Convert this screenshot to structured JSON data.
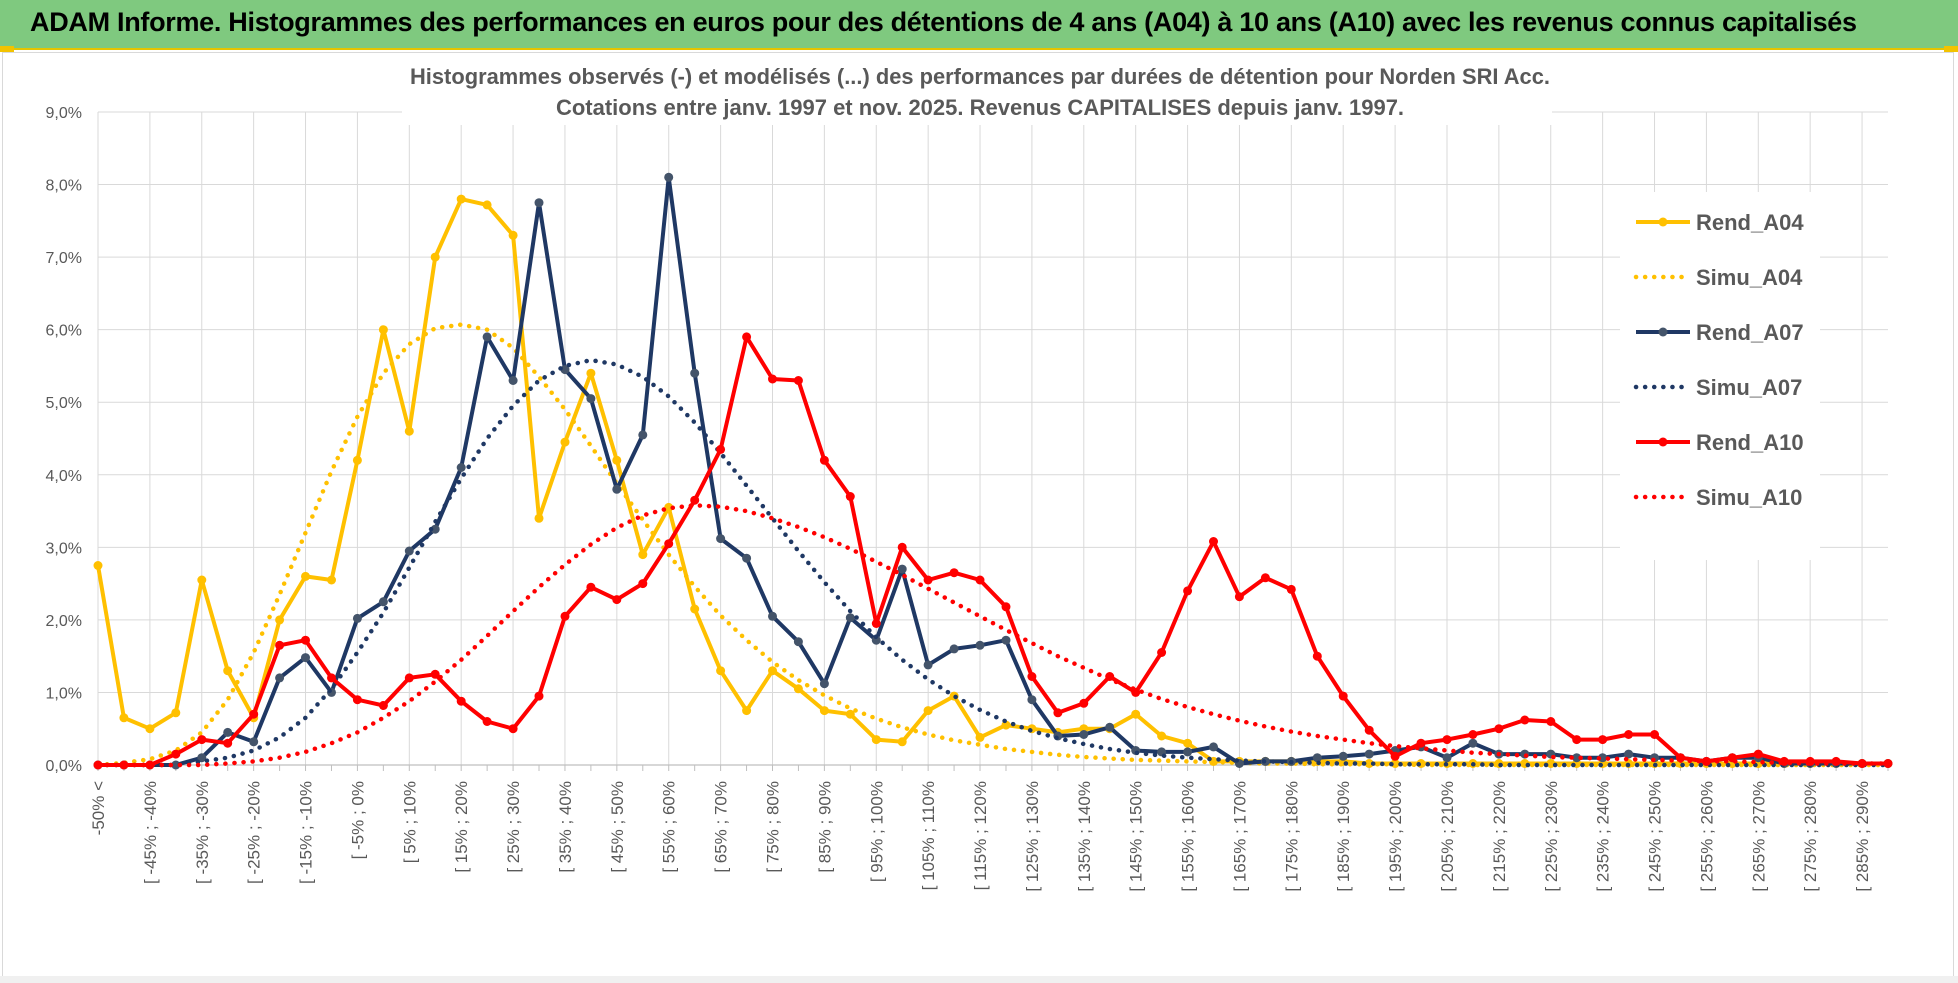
{
  "banner": {
    "title": "ADAM Informe. Histogrammes des performances en euros pour des détentions de 4 ans (A04) à 10 ans (A10) avec les revenus connus capitalisés",
    "bg_color": "#7fc97f",
    "accent_color": "#f3c300"
  },
  "chart_data": {
    "type": "line",
    "title": "Histogrammes observés (-) et modélisés (...) des performances par durées de détention pour Norden SRI Acc.",
    "subtitle": "Cotations entre janv. 1997 et nov. 2025. Revenus CAPITALISES depuis janv. 1997.",
    "xlabel": "",
    "ylabel": "",
    "ylim": [
      0,
      9
    ],
    "y_unit": "%",
    "y_ticks": [
      "0,0%",
      "1,0%",
      "2,0%",
      "3,0%",
      "4,0%",
      "5,0%",
      "6,0%",
      "7,0%",
      "8,0%",
      "9,0%"
    ],
    "grid": true,
    "legend_position": "right",
    "x_tick_labels": [
      "-50% <",
      "[ -45% ; -40%",
      "[ -35% ; -30%",
      "[ -25% ; -20%",
      "[ -15% ; -10%",
      "[ -5% ; 0%",
      "[ 5% ; 10%",
      "[ 15% ; 20%",
      "[ 25% ; 30%",
      "[ 35% ; 40%",
      "[ 45% ; 50%",
      "[ 55% ; 60%",
      "[ 65% ; 70%",
      "[ 75% ; 80%",
      "[ 85% ; 90%",
      "[ 95% ; 100%",
      "[ 105% ; 110%",
      "[ 115% ; 120%",
      "[ 125% ; 130%",
      "[ 135% ; 140%",
      "[ 145% ; 150%",
      "[ 155% ; 160%",
      "[ 165% ; 170%",
      "[ 175% ; 180%",
      "[ 185% ; 190%",
      "[ 195% ; 200%",
      "[ 205% ; 210%",
      "[ 215% ; 220%",
      "[ 225% ; 230%",
      "[ 235% ; 240%",
      "[ 245% ; 250%",
      "[ 255% ; 260%",
      "[ 265% ; 270%",
      "[ 275% ; 280%",
      "[ 285% ; 290%"
    ],
    "categories_count": 70,
    "series": [
      {
        "name": "Rend_A04",
        "color": "#ffc000",
        "style": "solid",
        "values": [
          2.75,
          0.65,
          0.5,
          0.72,
          2.55,
          1.3,
          0.65,
          2.0,
          2.6,
          2.55,
          4.2,
          6.0,
          4.6,
          7.0,
          7.8,
          7.72,
          7.3,
          3.4,
          4.45,
          5.4,
          4.2,
          2.9,
          3.55,
          2.15,
          1.3,
          0.75,
          1.3,
          1.05,
          0.75,
          0.7,
          0.35,
          0.32,
          0.75,
          0.95,
          0.38,
          0.55,
          0.5,
          0.45,
          0.5,
          0.5,
          0.7,
          0.4,
          0.3,
          0.05,
          0.05,
          0.05,
          0.05,
          0.05,
          0.05,
          0.02,
          0.02,
          0.02,
          0.02,
          0.02,
          0.02,
          0.02,
          0.02,
          0.02,
          0.02,
          0.02,
          0.02,
          0.02,
          0.02,
          0.02,
          0.02,
          0.02,
          0.02,
          0.02,
          0.02,
          0.02
        ]
      },
      {
        "name": "Simu_A04",
        "color": "#ffc000",
        "style": "dotted",
        "values": [
          0.0,
          0.03,
          0.08,
          0.2,
          0.45,
          0.9,
          1.55,
          2.35,
          3.2,
          4.05,
          4.8,
          5.4,
          5.8,
          6.02,
          6.07,
          6.0,
          5.75,
          5.35,
          4.9,
          4.4,
          3.88,
          3.38,
          2.9,
          2.46,
          2.06,
          1.72,
          1.42,
          1.17,
          0.96,
          0.78,
          0.64,
          0.52,
          0.42,
          0.34,
          0.28,
          0.22,
          0.18,
          0.14,
          0.11,
          0.09,
          0.07,
          0.06,
          0.05,
          0.04,
          0.03,
          0.02,
          0.02,
          0.01,
          0.01,
          0.01,
          0.01,
          0.0,
          0.0,
          0.0,
          0.0,
          0.0,
          0.0,
          0.0,
          0.0,
          0.0,
          0.0,
          0.0,
          0.0,
          0.0,
          0.0,
          0.0,
          0.0,
          0.0,
          0.0,
          0.0
        ]
      },
      {
        "name": "Rend_A07",
        "color": "#1f3864",
        "style": "solid",
        "values": [
          0.0,
          0.0,
          0.0,
          0.0,
          0.1,
          0.45,
          0.32,
          1.2,
          1.48,
          1.0,
          2.02,
          2.25,
          2.95,
          3.25,
          4.1,
          5.9,
          5.3,
          7.75,
          5.45,
          5.05,
          3.8,
          4.55,
          8.1,
          5.4,
          3.12,
          2.85,
          2.05,
          1.7,
          1.12,
          2.03,
          1.72,
          2.7,
          1.38,
          1.6,
          1.65,
          1.72,
          0.9,
          0.4,
          0.42,
          0.52,
          0.2,
          0.18,
          0.18,
          0.25,
          0.02,
          0.05,
          0.05,
          0.1,
          0.12,
          0.15,
          0.2,
          0.25,
          0.1,
          0.3,
          0.15,
          0.15,
          0.15,
          0.1,
          0.1,
          0.15,
          0.1,
          0.1,
          0.05,
          0.1,
          0.1,
          0.02,
          0.02,
          0.02,
          0.02,
          0.02
        ]
      },
      {
        "name": "Simu_A07",
        "color": "#1f3864",
        "style": "dotted",
        "values": [
          0.0,
          0.0,
          0.0,
          0.0,
          0.05,
          0.1,
          0.2,
          0.38,
          0.65,
          1.05,
          1.55,
          2.1,
          2.72,
          3.35,
          3.95,
          4.5,
          4.95,
          5.3,
          5.5,
          5.58,
          5.52,
          5.35,
          5.08,
          4.72,
          4.3,
          3.85,
          3.4,
          2.95,
          2.52,
          2.12,
          1.76,
          1.45,
          1.18,
          0.95,
          0.76,
          0.6,
          0.47,
          0.37,
          0.29,
          0.22,
          0.17,
          0.13,
          0.1,
          0.08,
          0.06,
          0.05,
          0.04,
          0.03,
          0.02,
          0.02,
          0.01,
          0.01,
          0.01,
          0.01,
          0.0,
          0.0,
          0.0,
          0.0,
          0.0,
          0.0,
          0.0,
          0.0,
          0.0,
          0.0,
          0.0,
          0.0,
          0.0,
          0.0,
          0.0,
          0.0
        ]
      },
      {
        "name": "Rend_A10",
        "color": "#ff0000",
        "style": "solid",
        "values": [
          0.0,
          0.0,
          0.0,
          0.15,
          0.35,
          0.3,
          0.7,
          1.65,
          1.72,
          1.2,
          0.9,
          0.82,
          1.2,
          1.25,
          0.88,
          0.6,
          0.5,
          0.95,
          2.05,
          2.45,
          2.28,
          2.5,
          3.05,
          3.65,
          4.35,
          5.9,
          5.32,
          5.3,
          4.2,
          3.7,
          1.95,
          3.0,
          2.55,
          2.65,
          2.55,
          2.18,
          1.22,
          0.72,
          0.85,
          1.22,
          1.0,
          1.55,
          2.4,
          3.08,
          2.32,
          2.58,
          2.42,
          1.5,
          0.95,
          0.48,
          0.12,
          0.3,
          0.35,
          0.42,
          0.5,
          0.62,
          0.6,
          0.35,
          0.35,
          0.42,
          0.42,
          0.1,
          0.05,
          0.1,
          0.15,
          0.05,
          0.05,
          0.05,
          0.02,
          0.02
        ]
      },
      {
        "name": "Simu_A10",
        "color": "#ff0000",
        "style": "dotted",
        "values": [
          0.0,
          0.0,
          0.0,
          0.0,
          0.0,
          0.02,
          0.05,
          0.1,
          0.18,
          0.3,
          0.45,
          0.65,
          0.88,
          1.15,
          1.45,
          1.78,
          2.12,
          2.45,
          2.76,
          3.04,
          3.27,
          3.44,
          3.54,
          3.58,
          3.56,
          3.5,
          3.4,
          3.28,
          3.14,
          2.98,
          2.8,
          2.62,
          2.43,
          2.24,
          2.05,
          1.86,
          1.68,
          1.5,
          1.34,
          1.18,
          1.04,
          0.91,
          0.8,
          0.7,
          0.61,
          0.53,
          0.46,
          0.4,
          0.35,
          0.3,
          0.26,
          0.23,
          0.2,
          0.17,
          0.15,
          0.13,
          0.11,
          0.1,
          0.09,
          0.08,
          0.07,
          0.06,
          0.05,
          0.05,
          0.04,
          0.03,
          0.02,
          0.02,
          0.02,
          0.02
        ]
      }
    ]
  }
}
